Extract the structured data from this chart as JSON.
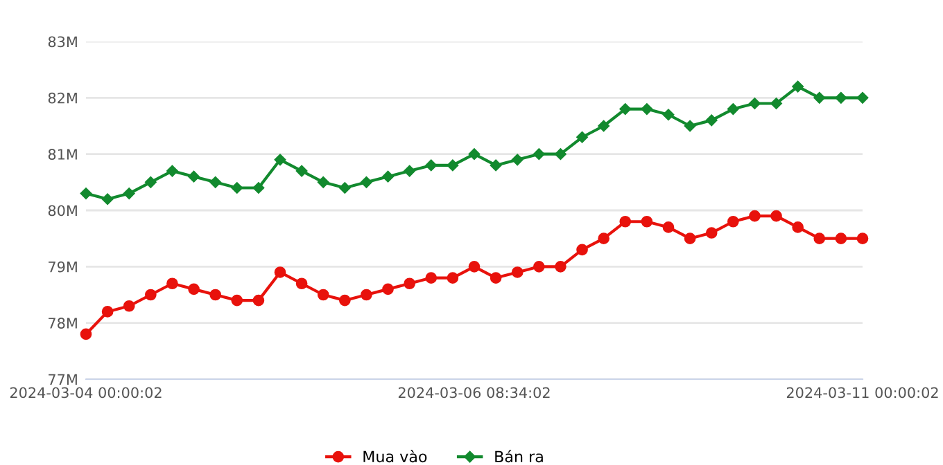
{
  "chart_data": {
    "type": "line",
    "categories": [
      "2024-03-04 00:00:02",
      null,
      null,
      null,
      null,
      null,
      null,
      null,
      null,
      null,
      null,
      null,
      null,
      null,
      null,
      null,
      null,
      null,
      "2024-03-06 08:34:02",
      null,
      null,
      null,
      null,
      null,
      null,
      null,
      null,
      null,
      null,
      null,
      null,
      null,
      null,
      null,
      null,
      null,
      "2024-03-11 00:00:02"
    ],
    "series": [
      {
        "name": "Mua vào",
        "color": "#e8120c",
        "marker": "circle",
        "values": [
          77.8,
          78.2,
          78.3,
          78.5,
          78.7,
          78.6,
          78.5,
          78.4,
          78.4,
          78.9,
          78.7,
          78.5,
          78.4,
          78.5,
          78.6,
          78.7,
          78.8,
          78.8,
          79.0,
          78.8,
          78.9,
          79.0,
          79.0,
          79.3,
          79.5,
          79.8,
          79.8,
          79.7,
          79.5,
          79.6,
          79.8,
          79.9,
          79.9,
          79.7,
          79.5,
          79.5,
          79.5
        ]
      },
      {
        "name": "Bán ra",
        "color": "#128a2e",
        "marker": "diamond",
        "values": [
          80.3,
          80.2,
          80.3,
          80.5,
          80.7,
          80.6,
          80.5,
          80.4,
          80.4,
          80.9,
          80.7,
          80.5,
          80.4,
          80.5,
          80.6,
          80.7,
          80.8,
          80.8,
          81.0,
          80.8,
          80.9,
          81.0,
          81.0,
          81.3,
          81.5,
          81.8,
          81.8,
          81.7,
          81.5,
          81.6,
          81.8,
          81.9,
          81.9,
          82.2,
          82.0,
          82.0,
          82.0
        ]
      }
    ],
    "ylim": [
      77,
      83
    ],
    "yticks": [
      {
        "value": 77,
        "label": "77M"
      },
      {
        "value": 78,
        "label": "78M"
      },
      {
        "value": 79,
        "label": "79M"
      },
      {
        "value": 80,
        "label": "80M"
      },
      {
        "value": 81,
        "label": "81M"
      },
      {
        "value": 82,
        "label": "82M"
      },
      {
        "value": 83,
        "label": "83M"
      }
    ],
    "grid": "y",
    "legend": "bottom"
  }
}
